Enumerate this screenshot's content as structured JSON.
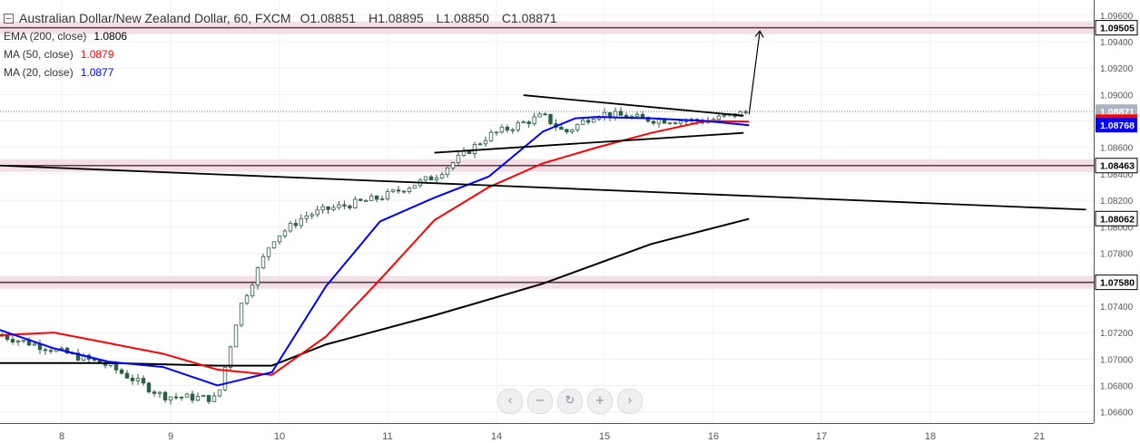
{
  "header": {
    "symbol": "Australian Dollar/New Zealand Dollar, 60, FXCM",
    "open": "O1.08851",
    "high": "H1.08895",
    "low": "L1.08850",
    "close": "C1.08871"
  },
  "indicators": [
    {
      "label": "EMA (200, close)",
      "value": "1.0806",
      "color": "#000000"
    },
    {
      "label": "MA (50, close)",
      "value": "1.0879",
      "color": "#ff0000"
    },
    {
      "label": "MA (20, close)",
      "value": "1.0877",
      "color": "#0000ff"
    }
  ],
  "nav_buttons": [
    "‹",
    "−",
    "↻",
    "+",
    "›"
  ],
  "chart_data": {
    "type": "line",
    "instrument": "AUD/NZD",
    "timeframe": "60",
    "x_ticks": [
      "8",
      "9",
      "10",
      "11",
      "14",
      "15",
      "16",
      "17",
      "18",
      "21"
    ],
    "y_ticks": [
      "1.09600",
      "1.09400",
      "1.09200",
      "1.09000",
      "1.08800",
      "1.08600",
      "1.08400",
      "1.08200",
      "1.08000",
      "1.07800",
      "1.07600",
      "1.07400",
      "1.07200",
      "1.07000",
      "1.06800",
      "1.06600"
    ],
    "ylim": [
      1.0655,
      1.0966
    ],
    "price_labels": [
      {
        "text": "1.09505",
        "value": 1.09505,
        "bg": "#ffffff",
        "fg": "#000000"
      },
      {
        "text": "1.08871",
        "value": 1.08871,
        "bg": "#a9b4c0",
        "fg": "#ffffff"
      },
      {
        "text": "1.08795",
        "value": 1.08795,
        "bg": "#ff0000",
        "fg": "#ffffff"
      },
      {
        "text": "1.08768",
        "value": 1.08768,
        "bg": "#0000ff",
        "fg": "#ffffff"
      },
      {
        "text": "1.08463",
        "value": 1.08463,
        "bg": "#ffffff",
        "fg": "#000000"
      },
      {
        "text": "1.08062",
        "value": 1.08062,
        "bg": "#ffffff",
        "fg": "#000000"
      },
      {
        "text": "1.07580",
        "value": 1.0758,
        "bg": "#ffffff",
        "fg": "#000000"
      }
    ],
    "horizontal_levels": [
      1.09505,
      1.08463,
      1.0758
    ],
    "last_price": 1.08871,
    "series": [
      {
        "name": "EMA (200, close)",
        "color": "#000000",
        "x": [
          0,
          1,
          2,
          2.5,
          3,
          4,
          5,
          6,
          6.9
        ],
        "y": [
          1.0697,
          1.0697,
          1.0695,
          1.0695,
          1.0711,
          1.0733,
          1.0757,
          1.0787,
          1.0806
        ]
      },
      {
        "name": "MA (50, close)",
        "color": "#ff0000",
        "x": [
          0,
          0.5,
          1,
          1.5,
          2,
          2.5,
          3,
          3.5,
          4,
          4.5,
          5,
          5.5,
          6,
          6.5,
          6.9
        ],
        "y": [
          1.0718,
          1.072,
          1.0712,
          1.0704,
          1.0692,
          1.0688,
          1.0717,
          1.076,
          1.0805,
          1.083,
          1.0848,
          1.086,
          1.0871,
          1.088,
          1.08795
        ]
      },
      {
        "name": "MA (20, close)",
        "color": "#0000ff",
        "x": [
          0,
          0.5,
          1,
          1.5,
          2,
          2.5,
          3,
          3.5,
          4,
          4.5,
          5,
          5.3,
          5.5,
          6,
          6.5,
          6.9
        ],
        "y": [
          1.0722,
          1.0708,
          1.0698,
          1.0694,
          1.068,
          1.069,
          1.0755,
          1.0804,
          1.0822,
          1.0838,
          1.0872,
          1.0882,
          1.0883,
          1.0882,
          1.088,
          1.08768
        ]
      },
      {
        "name": "price",
        "color": "#2d5f44",
        "x": [
          0,
          0.5,
          1,
          1.5,
          2,
          2.2,
          2.5,
          2.8,
          3,
          3.5,
          4,
          4.5,
          5,
          5.2,
          5.5,
          6,
          6.5,
          6.9
        ],
        "y": [
          1.0718,
          1.0707,
          1.0695,
          1.0672,
          1.067,
          1.0738,
          1.079,
          1.0808,
          1.0813,
          1.0822,
          1.0838,
          1.0869,
          1.0884,
          1.0871,
          1.0886,
          1.0881,
          1.088,
          1.08871
        ]
      }
    ],
    "trendlines": [
      {
        "x": [
          0,
          10
        ],
        "y": [
          1.08463,
          1.0813
        ]
      },
      {
        "x": [
          4.82,
          6.85
        ],
        "y": [
          1.08995,
          1.0884
        ]
      },
      {
        "x": [
          4.0,
          6.85
        ],
        "y": [
          1.0856,
          1.0871
        ]
      },
      {
        "x": [
          6.9,
          7.0
        ],
        "y": [
          1.0885,
          1.0948
        ]
      }
    ]
  }
}
